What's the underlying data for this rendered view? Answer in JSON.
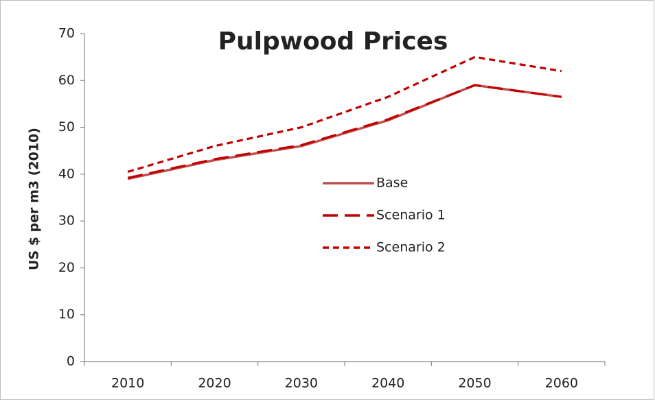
{
  "chart_data": {
    "type": "line",
    "title": "Pulpwood Prices",
    "ylabel": "US $ per m3 (2010)",
    "categories": [
      "2010",
      "2020",
      "2030",
      "2040",
      "2050",
      "2060"
    ],
    "series": [
      {
        "name": "Base",
        "color": "#c0504d",
        "dash": "solid",
        "values": [
          39,
          43,
          46,
          51.5,
          59,
          56.5
        ]
      },
      {
        "name": "Scenario 1",
        "color": "#c00000",
        "dash": "long",
        "values": [
          39.2,
          43.2,
          46.2,
          51.7,
          59,
          56.5
        ]
      },
      {
        "name": "Scenario 2",
        "color": "#c00000",
        "dash": "short",
        "values": [
          40.5,
          46,
          50,
          56.5,
          65,
          62
        ]
      }
    ],
    "ylim": [
      0,
      70
    ],
    "yticks": [
      0,
      10,
      20,
      30,
      40,
      50,
      60,
      70
    ],
    "grid": false,
    "legend": "center"
  }
}
